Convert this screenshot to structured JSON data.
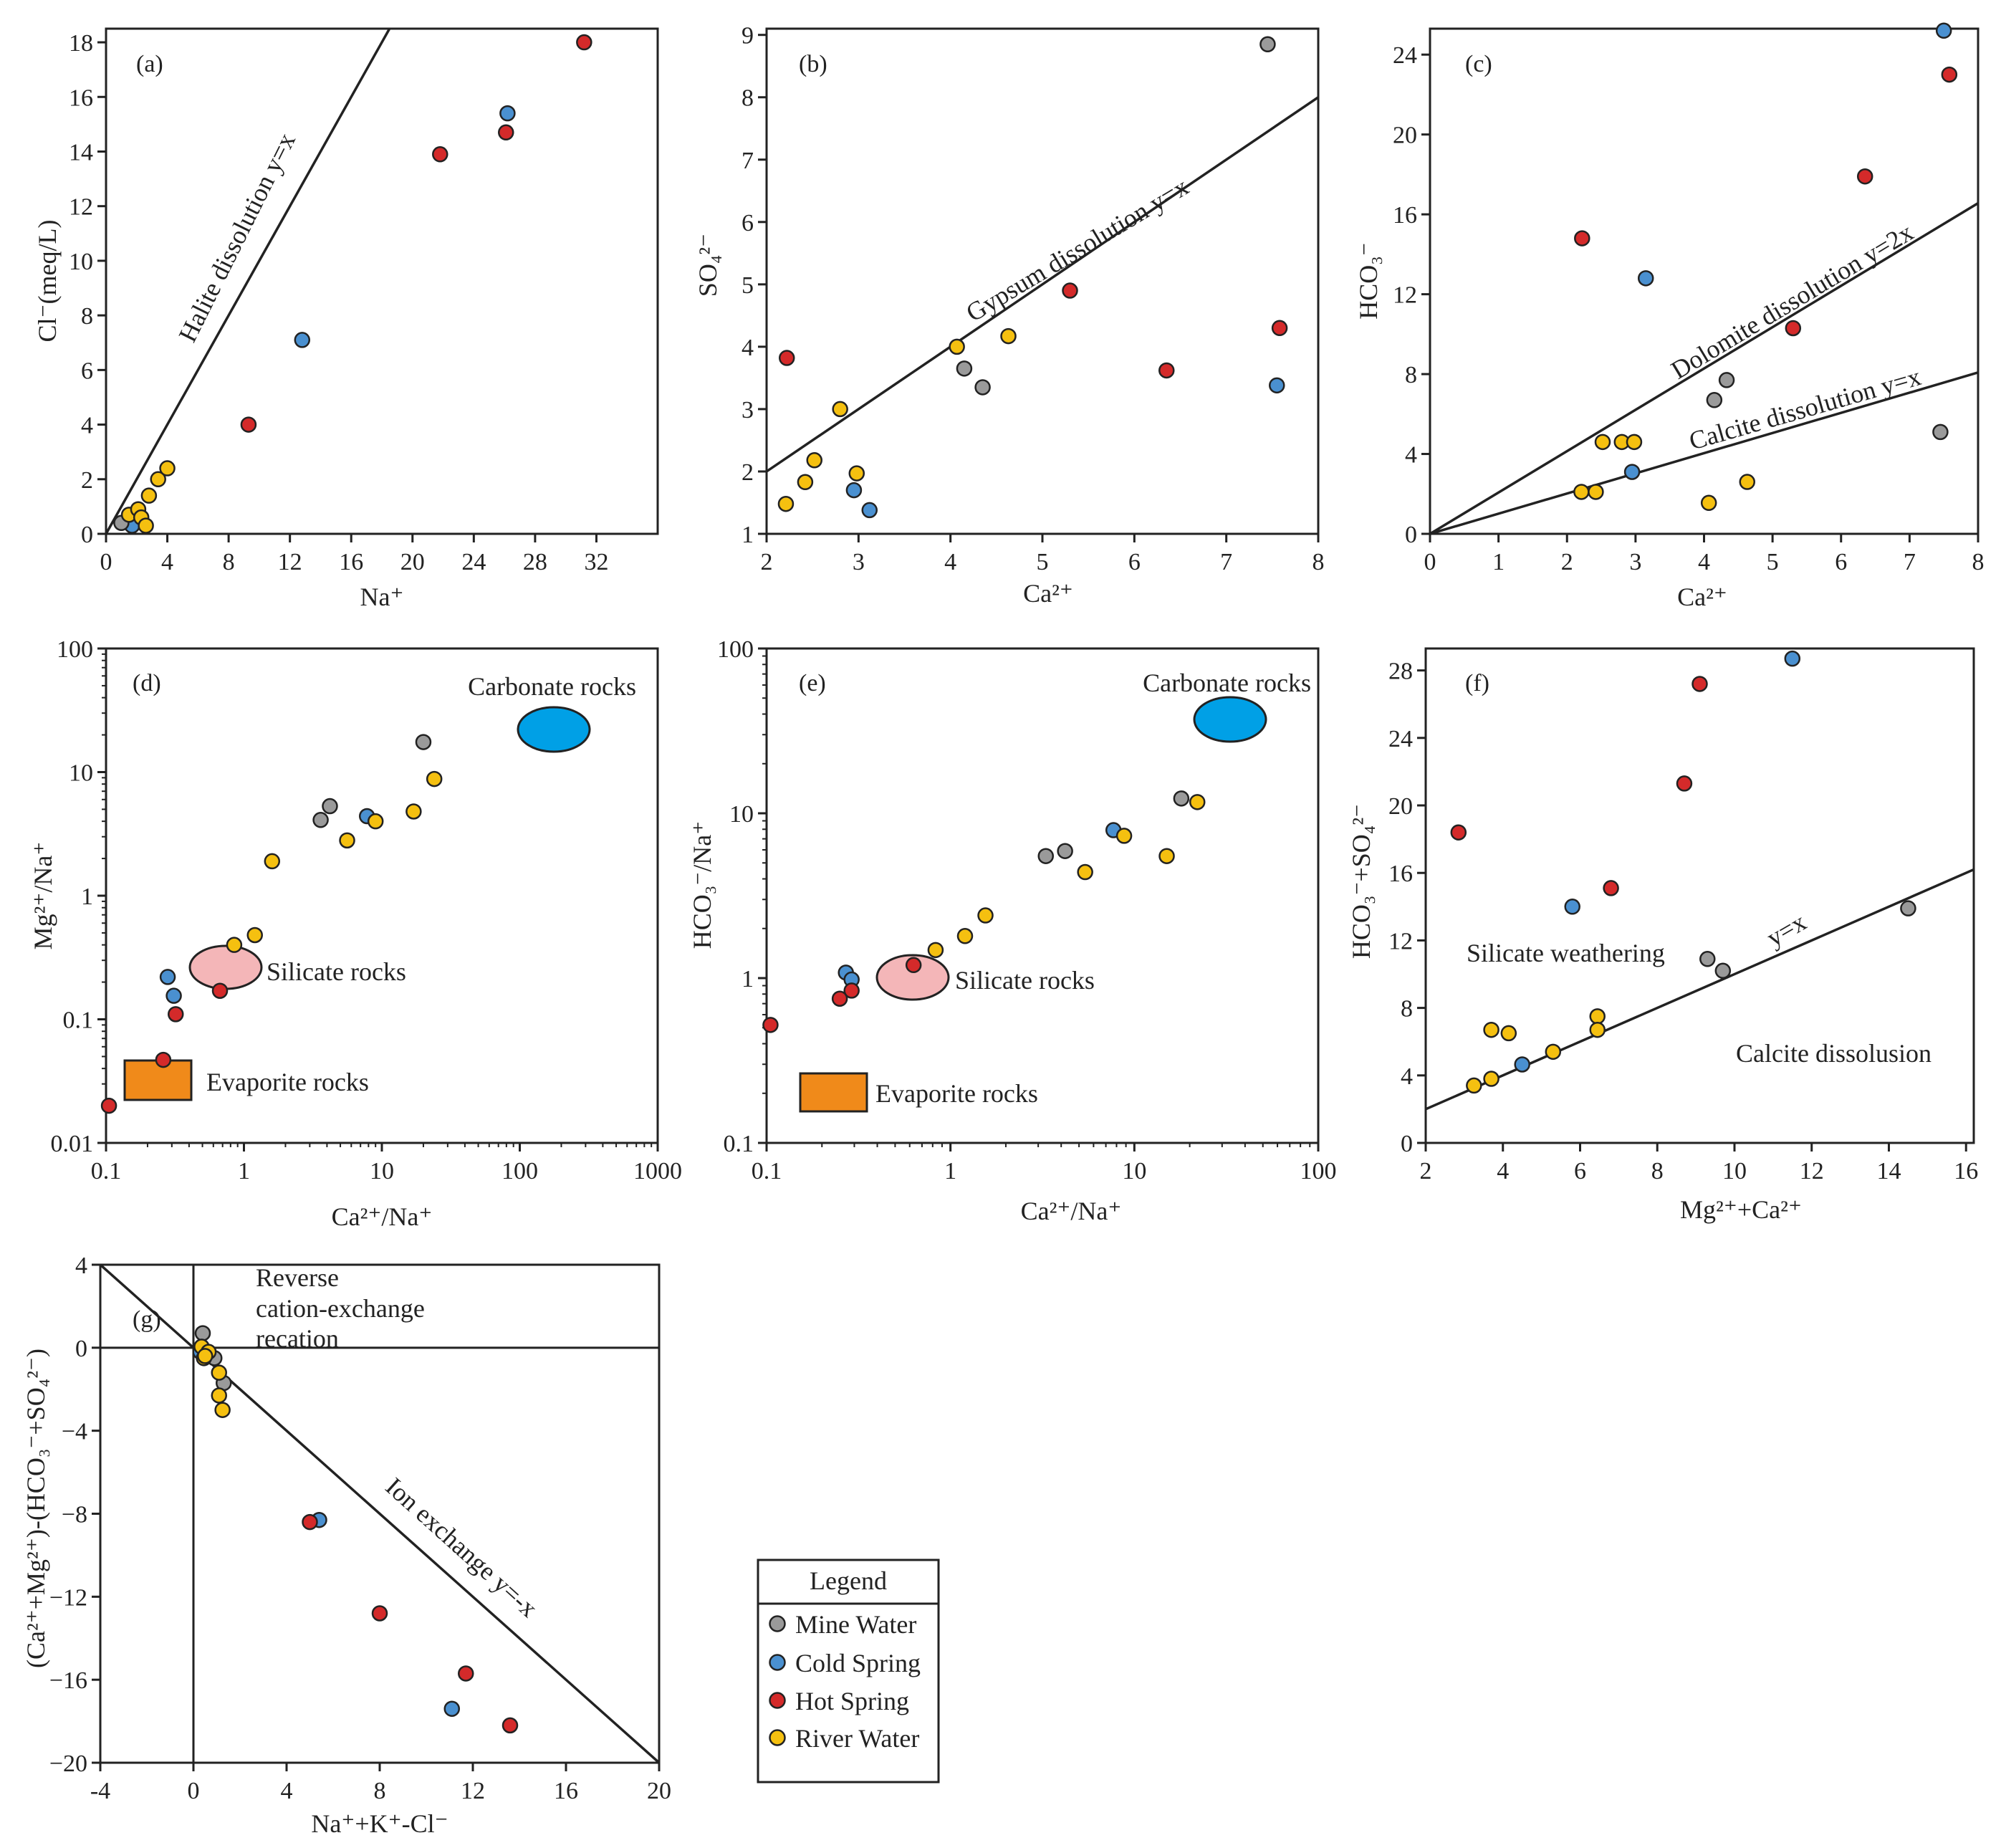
{
  "colors": {
    "mine": "#9a9a9a",
    "cold": "#4a90d0",
    "hot": "#d42a2a",
    "river": "#f5c010",
    "carbonate": "#00a0e6",
    "silicate": "#f4b6b8",
    "evaporite": "#f08a1a"
  },
  "legend": {
    "title": "Legend",
    "items": [
      {
        "label": "Mine Water",
        "group": "mine"
      },
      {
        "label": "Cold Spring",
        "group": "cold"
      },
      {
        "label": "Hot Spring",
        "group": "hot"
      },
      {
        "label": "River Water",
        "group": "river"
      }
    ]
  },
  "chart_data": [
    {
      "id": "a",
      "panel_label": "(a)",
      "type": "scatter",
      "xlabel": "Na⁺",
      "ylabel": "Cl⁻(meq/L)",
      "xlim": [
        0,
        36
      ],
      "ylim": [
        0,
        18.5
      ],
      "xticks": [
        0,
        4,
        8,
        12,
        16,
        20,
        24,
        28,
        32
      ],
      "yticks": [
        0,
        2,
        4,
        6,
        8,
        10,
        12,
        14,
        16,
        18
      ],
      "lines": [
        {
          "label": "Halite dissolution y=x",
          "slope": 1,
          "intercept": 0
        }
      ],
      "series": [
        {
          "name": "Hot Spring",
          "group": "hot",
          "points": [
            [
              9.3,
              4.0
            ],
            [
              21.8,
              13.9
            ],
            [
              26.1,
              14.7
            ],
            [
              31.2,
              18.0
            ]
          ]
        },
        {
          "name": "Cold Spring",
          "group": "cold",
          "points": [
            [
              12.8,
              7.1
            ],
            [
              26.2,
              15.4
            ],
            [
              1.7,
              0.3
            ]
          ]
        },
        {
          "name": "Mine Water",
          "group": "mine",
          "points": [
            [
              1.0,
              0.4
            ]
          ]
        },
        {
          "name": "River Water",
          "group": "river",
          "points": [
            [
              1.5,
              0.7
            ],
            [
              2.1,
              0.9
            ],
            [
              2.3,
              0.6
            ],
            [
              2.6,
              0.3
            ],
            [
              2.8,
              1.4
            ],
            [
              3.4,
              2.0
            ],
            [
              4.0,
              2.4
            ]
          ]
        }
      ]
    },
    {
      "id": "b",
      "panel_label": "(b)",
      "type": "scatter",
      "xlabel": "Ca²⁺",
      "ylabel": "SO₄²⁻",
      "xlim": [
        2,
        8
      ],
      "ylim": [
        1,
        9.1
      ],
      "xticks": [
        2,
        3,
        4,
        5,
        6,
        7,
        8
      ],
      "yticks": [
        1,
        2,
        3,
        4,
        5,
        6,
        7,
        8,
        9
      ],
      "lines": [
        {
          "label": "Gypsum dissolution y=x",
          "slope": 1,
          "intercept": 0
        }
      ],
      "series": [
        {
          "name": "Mine Water",
          "group": "mine",
          "points": [
            [
              7.45,
              8.85
            ],
            [
              4.15,
              3.65
            ],
            [
              4.35,
              3.35
            ]
          ]
        },
        {
          "name": "Cold Spring",
          "group": "cold",
          "points": [
            [
              7.55,
              3.38
            ],
            [
              2.95,
              1.7
            ],
            [
              3.12,
              1.38
            ]
          ]
        },
        {
          "name": "Hot Spring",
          "group": "hot",
          "points": [
            [
              2.22,
              3.82
            ],
            [
              5.3,
              4.9
            ],
            [
              6.35,
              3.62
            ],
            [
              7.58,
              4.3
            ]
          ]
        },
        {
          "name": "River Water",
          "group": "river",
          "points": [
            [
              4.07,
              4.0
            ],
            [
              4.63,
              4.17
            ],
            [
              2.8,
              3.0
            ],
            [
              2.52,
              2.18
            ],
            [
              2.42,
              1.83
            ],
            [
              2.98,
              1.97
            ],
            [
              2.21,
              1.48
            ]
          ]
        }
      ]
    },
    {
      "id": "c",
      "panel_label": "(c)",
      "type": "scatter",
      "xlabel": "Ca²⁺",
      "ylabel": "HCO₃⁻",
      "xlim": [
        0,
        8
      ],
      "ylim": [
        0,
        25.3
      ],
      "xticks": [
        0,
        1,
        2,
        3,
        4,
        5,
        6,
        7,
        8
      ],
      "yticks": [
        0,
        4,
        8,
        12,
        16,
        20,
        24
      ],
      "lines": [
        {
          "label": "Dolomite dissolution y=2x",
          "slope": 2.07,
          "intercept": 0
        },
        {
          "label": "Calcite dissolution y=x",
          "slope": 1.01,
          "intercept": 0
        }
      ],
      "series": [
        {
          "name": "Cold Spring",
          "group": "cold",
          "points": [
            [
              7.5,
              25.2
            ],
            [
              3.15,
              12.8
            ],
            [
              2.95,
              3.1
            ]
          ]
        },
        {
          "name": "Hot Spring",
          "group": "hot",
          "points": [
            [
              7.58,
              23.0
            ],
            [
              6.35,
              17.9
            ],
            [
              2.22,
              14.8
            ],
            [
              5.3,
              10.3
            ]
          ]
        },
        {
          "name": "Mine Water",
          "group": "mine",
          "points": [
            [
              4.33,
              7.7
            ],
            [
              4.15,
              6.7
            ],
            [
              7.45,
              5.1
            ]
          ]
        },
        {
          "name": "River Water",
          "group": "river",
          "points": [
            [
              2.52,
              4.6
            ],
            [
              2.8,
              4.6
            ],
            [
              2.98,
              4.6
            ],
            [
              2.21,
              2.1
            ],
            [
              2.42,
              2.1
            ],
            [
              4.63,
              2.6
            ],
            [
              4.07,
              1.55
            ]
          ]
        }
      ]
    },
    {
      "id": "d",
      "panel_label": "(d)",
      "type": "scatter",
      "scale": "log",
      "xlabel": "Ca²⁺/Na⁺",
      "ylabel": "Mg²⁺/Na⁺",
      "xlim": [
        0.1,
        1000
      ],
      "ylim": [
        0.01,
        100
      ],
      "xticks": [
        0.1,
        1,
        10,
        100,
        1000
      ],
      "xticklabels": [
        "0.1",
        "1",
        "10",
        "100",
        "1000"
      ],
      "yticks": [
        0.01,
        0.1,
        1,
        10,
        100
      ],
      "yticklabels": [
        "0.01",
        "0.1",
        "1",
        "10",
        "100"
      ],
      "regions": [
        {
          "label": "Carbonate rocks",
          "group": "carbonate",
          "shape": "ellipse",
          "center": [
            200,
            21
          ]
        },
        {
          "label": "Silicate rocks",
          "group": "silicate",
          "shape": "ellipse",
          "center": [
            0.9,
            0.27
          ]
        },
        {
          "label": "Evaporite rocks",
          "group": "evaporite",
          "shape": "rect",
          "center": [
            0.23,
            0.032
          ]
        }
      ],
      "series": [
        {
          "name": "Mine Water",
          "group": "mine",
          "points": [
            [
              20,
              17.5
            ],
            [
              4.2,
              5.3
            ],
            [
              3.6,
              4.1
            ]
          ]
        },
        {
          "name": "Cold Spring",
          "group": "cold",
          "points": [
            [
              7.8,
              4.4
            ],
            [
              0.28,
              0.22
            ],
            [
              0.31,
              0.155
            ]
          ]
        },
        {
          "name": "Hot Spring",
          "group": "hot",
          "points": [
            [
              0.32,
              0.11
            ],
            [
              0.67,
              0.17
            ],
            [
              0.26,
              0.047
            ],
            [
              0.105,
              0.02
            ]
          ]
        },
        {
          "name": "River Water",
          "group": "river",
          "points": [
            [
              24,
              8.8
            ],
            [
              17,
              4.8
            ],
            [
              9,
              4.0
            ],
            [
              5.6,
              2.8
            ],
            [
              1.6,
              1.9
            ],
            [
              1.2,
              0.48
            ],
            [
              0.85,
              0.4
            ]
          ]
        }
      ]
    },
    {
      "id": "e",
      "panel_label": "(e)",
      "type": "scatter",
      "scale": "log",
      "xlabel": "Ca²⁺/Na⁺",
      "ylabel": "HCO₃⁻/Na⁺",
      "xlim": [
        0.1,
        100
      ],
      "ylim": [
        0.1,
        100
      ],
      "xticks": [
        0.1,
        1,
        10,
        100
      ],
      "xticklabels": [
        "0.1",
        "1",
        "10",
        "100"
      ],
      "yticks": [
        0.1,
        1,
        10,
        100
      ],
      "yticklabels": [
        "0.1",
        "1",
        "10",
        "100"
      ],
      "regions": [
        {
          "label": "Carbonate rocks",
          "group": "carbonate",
          "shape": "ellipse",
          "center": [
            33,
            34
          ]
        },
        {
          "label": "Silicate rocks",
          "group": "silicate",
          "shape": "ellipse",
          "center": [
            0.68,
            0.99
          ]
        },
        {
          "label": "Evaporite rocks",
          "group": "evaporite",
          "shape": "rect",
          "center": [
            0.23,
            0.24
          ]
        }
      ],
      "series": [
        {
          "name": "Mine Water",
          "group": "mine",
          "points": [
            [
              18,
              12.3
            ],
            [
              4.2,
              5.9
            ],
            [
              3.3,
              5.5
            ]
          ]
        },
        {
          "name": "Cold Spring",
          "group": "cold",
          "points": [
            [
              7.7,
              7.9
            ],
            [
              0.27,
              1.08
            ],
            [
              0.29,
              0.98
            ]
          ]
        },
        {
          "name": "Hot Spring",
          "group": "hot",
          "points": [
            [
              0.63,
              1.2
            ],
            [
              0.25,
              0.75
            ],
            [
              0.29,
              0.84
            ],
            [
              0.105,
              0.52
            ]
          ]
        },
        {
          "name": "River Water",
          "group": "river",
          "points": [
            [
              22,
              11.7
            ],
            [
              8.8,
              7.3
            ],
            [
              15,
              5.5
            ],
            [
              5.4,
              4.4
            ],
            [
              1.55,
              2.4
            ],
            [
              1.2,
              1.8
            ],
            [
              0.83,
              1.48
            ]
          ]
        }
      ]
    },
    {
      "id": "f",
      "panel_label": "(f)",
      "type": "scatter",
      "xlabel": "Mg²⁺+Ca²⁺",
      "ylabel": "HCO₃⁻+SO₄²⁻",
      "xlim": [
        2,
        16.2
      ],
      "ylim": [
        0,
        29.3
      ],
      "xticks": [
        2,
        4,
        6,
        8,
        10,
        12,
        14,
        16
      ],
      "yticks": [
        0,
        4,
        8,
        12,
        16,
        20,
        24,
        28
      ],
      "lines": [
        {
          "label": "y=x",
          "slope": 1,
          "intercept": 0
        }
      ],
      "annotations": [
        "Silicate weathering",
        "Calcite dissolusion"
      ],
      "series": [
        {
          "name": "Cold Spring",
          "group": "cold",
          "points": [
            [
              11.5,
              28.7
            ],
            [
              5.8,
              14.0
            ],
            [
              4.5,
              4.65
            ]
          ]
        },
        {
          "name": "Hot Spring",
          "group": "hot",
          "points": [
            [
              9.1,
              27.2
            ],
            [
              8.7,
              21.3
            ],
            [
              2.85,
              18.4
            ],
            [
              6.8,
              15.1
            ]
          ]
        },
        {
          "name": "Mine Water",
          "group": "mine",
          "points": [
            [
              14.5,
              13.9
            ],
            [
              9.3,
              10.9
            ],
            [
              9.7,
              10.2
            ]
          ]
        },
        {
          "name": "River Water",
          "group": "river",
          "points": [
            [
              3.7,
              6.7
            ],
            [
              4.15,
              6.5
            ],
            [
              6.45,
              7.5
            ],
            [
              6.45,
              6.7
            ],
            [
              5.3,
              5.4
            ],
            [
              3.7,
              3.8
            ],
            [
              3.25,
              3.4
            ]
          ]
        }
      ]
    },
    {
      "id": "g",
      "panel_label": "(g)",
      "type": "scatter",
      "xlabel": "Na⁺+K⁺-Cl⁻",
      "ylabel": "(Ca²⁺+Mg²⁺)-(HCO₃⁻+SO₄²⁻)",
      "xlim": [
        -4,
        20
      ],
      "ylim": [
        -20,
        4
      ],
      "xticks": [
        -4,
        0,
        4,
        8,
        12,
        16,
        20
      ],
      "yticks": [
        4,
        0,
        -4,
        -8,
        -12,
        -16,
        -20
      ],
      "lines": [
        {
          "label": "Ion exchange y=-x",
          "slope": -1,
          "intercept": 0
        }
      ],
      "annotations": [
        "Reverse",
        "cation-exchange",
        "recation"
      ],
      "series": [
        {
          "name": "Mine Water",
          "group": "mine",
          "points": [
            [
              0.4,
              0.7
            ],
            [
              0.9,
              -0.5
            ],
            [
              1.3,
              -1.7
            ]
          ]
        },
        {
          "name": "Cold Spring",
          "group": "cold",
          "points": [
            [
              5.4,
              -8.3
            ],
            [
              11.1,
              -17.4
            ],
            [
              0.3,
              -0.2
            ]
          ]
        },
        {
          "name": "Hot Spring",
          "group": "hot",
          "points": [
            [
              5.0,
              -8.4
            ],
            [
              8.0,
              -12.8
            ],
            [
              11.7,
              -15.7
            ],
            [
              13.6,
              -18.2
            ]
          ]
        },
        {
          "name": "River Water",
          "group": "river",
          "points": [
            [
              0.35,
              0.05
            ],
            [
              0.65,
              -0.2
            ],
            [
              0.45,
              -0.5
            ],
            [
              1.1,
              -1.2
            ],
            [
              1.1,
              -2.3
            ],
            [
              1.25,
              -3.0
            ],
            [
              0.5,
              -0.4
            ]
          ]
        }
      ]
    }
  ]
}
